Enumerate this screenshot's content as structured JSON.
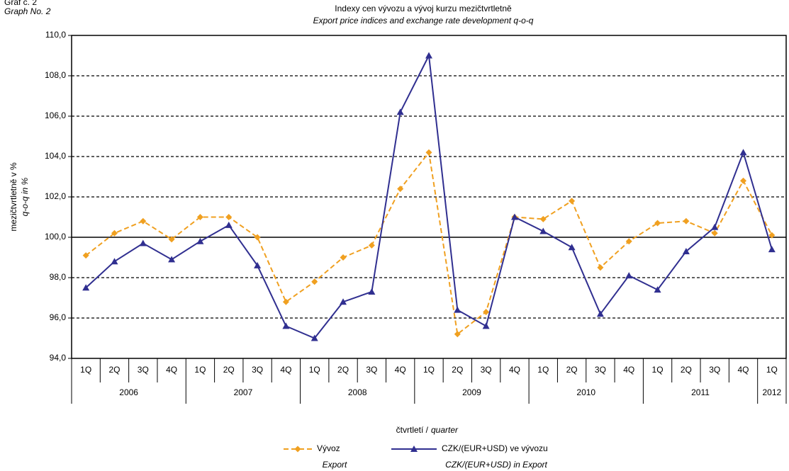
{
  "chart_data": {
    "type": "line",
    "corner_label": "Graf č. 2",
    "corner_label_en": "Graph No. 2",
    "title": "Indexy cen vývozu a vývoj kurzu mezičtvrtletně",
    "subtitle": "Export price indices and exchange rate development  q-o-q",
    "ylabel": "mezičtvrtletně v %",
    "ylabel_en": "q-o-q  in %",
    "xlabel": "čtvrtletí /",
    "xlabel_en": "quarter",
    "categories": [
      "1Q",
      "2Q",
      "3Q",
      "4Q",
      "1Q",
      "2Q",
      "3Q",
      "4Q",
      "1Q",
      "2Q",
      "3Q",
      "4Q",
      "1Q",
      "2Q",
      "3Q",
      "4Q",
      "1Q",
      "2Q",
      "3Q",
      "4Q",
      "1Q",
      "2Q",
      "3Q",
      "4Q",
      "1Q"
    ],
    "years": [
      "2006",
      "2007",
      "2008",
      "2009",
      "2010",
      "2011",
      "2012"
    ],
    "series": [
      {
        "name": "Vývoz",
        "name_en": "Export",
        "color": "#f0a020",
        "dashed": true,
        "marker": "diamond",
        "values": [
          99.1,
          100.2,
          100.8,
          99.9,
          101.0,
          101.0,
          100.0,
          96.8,
          97.8,
          99.0,
          99.6,
          102.4,
          104.2,
          95.2,
          96.3,
          101.0,
          100.9,
          101.8,
          98.5,
          99.8,
          100.7,
          100.8,
          100.2,
          102.8,
          100.1
        ]
      },
      {
        "name": "CZK/(EUR+USD) ve vývozu",
        "name_en": "CZK/(EUR+USD) in Export",
        "color": "#302f90",
        "dashed": false,
        "marker": "triangle",
        "values": [
          97.5,
          98.8,
          99.7,
          98.9,
          99.8,
          100.6,
          98.6,
          95.6,
          95.0,
          96.8,
          97.3,
          106.2,
          109.0,
          96.4,
          95.6,
          101.0,
          100.3,
          99.5,
          96.2,
          98.1,
          97.4,
          99.3,
          100.5,
          104.2,
          99.4
        ]
      }
    ],
    "ylim": [
      94,
      110
    ],
    "yticks": [
      {
        "value": 94,
        "label": "94,0"
      },
      {
        "value": 96,
        "label": "96,0"
      },
      {
        "value": 98,
        "label": "98,0"
      },
      {
        "value": 100,
        "label": "100,0"
      },
      {
        "value": 102,
        "label": "102,0"
      },
      {
        "value": 104,
        "label": "104,0"
      },
      {
        "value": 106,
        "label": "106,0"
      },
      {
        "value": 108,
        "label": "108,0"
      },
      {
        "value": 110,
        "label": "110,0"
      }
    ],
    "grid": true,
    "baseline": 100
  }
}
